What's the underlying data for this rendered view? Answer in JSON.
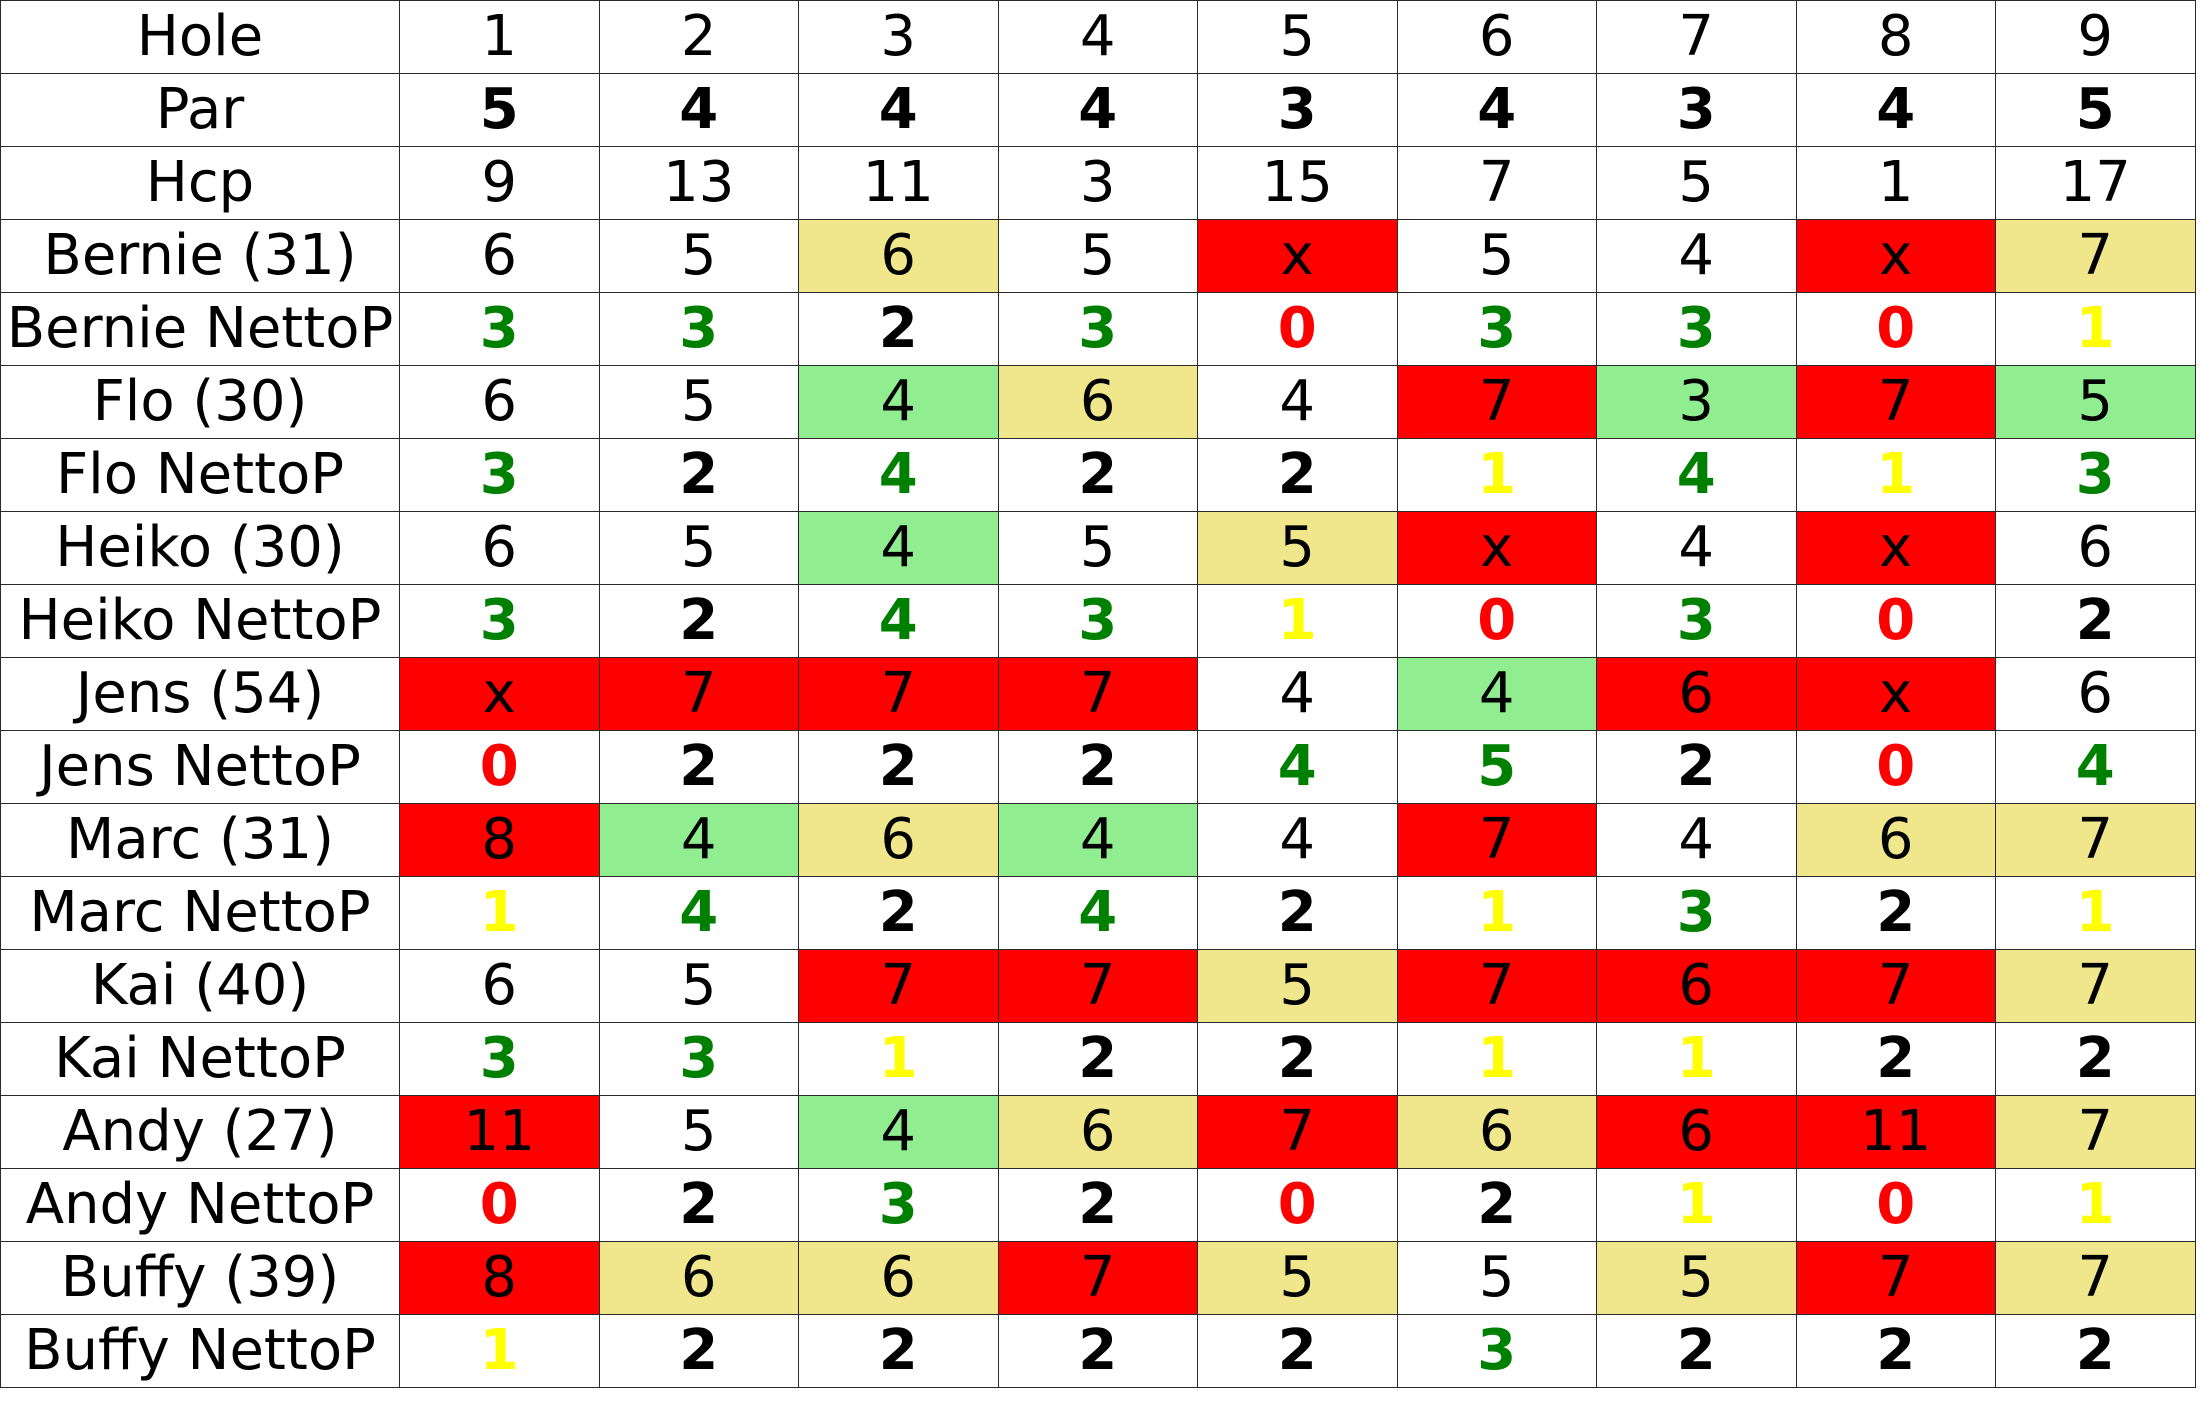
{
  "colors": {
    "cell_red": "#ff0000",
    "cell_green": "#90ee90",
    "cell_khaki": "#f0e68c",
    "text_green": "#008000",
    "text_red": "#ff0000",
    "text_yellow": "#ffff00",
    "text_black": "#000000"
  },
  "rows": [
    {
      "label": "Hole",
      "bold": false,
      "cells": [
        {
          "v": "1"
        },
        {
          "v": "2"
        },
        {
          "v": "3"
        },
        {
          "v": "4"
        },
        {
          "v": "5"
        },
        {
          "v": "6"
        },
        {
          "v": "7"
        },
        {
          "v": "8"
        },
        {
          "v": "9"
        }
      ]
    },
    {
      "label": "Par",
      "bold": true,
      "cells": [
        {
          "v": "5"
        },
        {
          "v": "4"
        },
        {
          "v": "4"
        },
        {
          "v": "4"
        },
        {
          "v": "3"
        },
        {
          "v": "4"
        },
        {
          "v": "3"
        },
        {
          "v": "4"
        },
        {
          "v": "5"
        }
      ]
    },
    {
      "label": "Hcp",
      "bold": false,
      "cells": [
        {
          "v": "9"
        },
        {
          "v": "13"
        },
        {
          "v": "11"
        },
        {
          "v": "3"
        },
        {
          "v": "15"
        },
        {
          "v": "7"
        },
        {
          "v": "5"
        },
        {
          "v": "1"
        },
        {
          "v": "17"
        }
      ]
    },
    {
      "label": "Bernie (31)",
      "bold": false,
      "cells": [
        {
          "v": "6"
        },
        {
          "v": "5"
        },
        {
          "v": "6",
          "bg": "khaki"
        },
        {
          "v": "5"
        },
        {
          "v": "x",
          "bg": "red"
        },
        {
          "v": "5"
        },
        {
          "v": "4"
        },
        {
          "v": "x",
          "bg": "red"
        },
        {
          "v": "7",
          "bg": "khaki"
        }
      ]
    },
    {
      "label": "Bernie NettoP",
      "bold": true,
      "cells": [
        {
          "v": "3",
          "fg": "green"
        },
        {
          "v": "3",
          "fg": "green"
        },
        {
          "v": "2"
        },
        {
          "v": "3",
          "fg": "green"
        },
        {
          "v": "0",
          "fg": "red"
        },
        {
          "v": "3",
          "fg": "green"
        },
        {
          "v": "3",
          "fg": "green"
        },
        {
          "v": "0",
          "fg": "red"
        },
        {
          "v": "1",
          "fg": "yellow"
        }
      ]
    },
    {
      "label": "Flo (30)",
      "bold": false,
      "cells": [
        {
          "v": "6"
        },
        {
          "v": "5"
        },
        {
          "v": "4",
          "bg": "green"
        },
        {
          "v": "6",
          "bg": "khaki"
        },
        {
          "v": "4"
        },
        {
          "v": "7",
          "bg": "red"
        },
        {
          "v": "3",
          "bg": "green"
        },
        {
          "v": "7",
          "bg": "red"
        },
        {
          "v": "5",
          "bg": "green"
        }
      ]
    },
    {
      "label": "Flo NettoP",
      "bold": true,
      "cells": [
        {
          "v": "3",
          "fg": "green"
        },
        {
          "v": "2"
        },
        {
          "v": "4",
          "fg": "green"
        },
        {
          "v": "2"
        },
        {
          "v": "2"
        },
        {
          "v": "1",
          "fg": "yellow"
        },
        {
          "v": "4",
          "fg": "green"
        },
        {
          "v": "1",
          "fg": "yellow"
        },
        {
          "v": "3",
          "fg": "green"
        }
      ]
    },
    {
      "label": "Heiko (30)",
      "bold": false,
      "cells": [
        {
          "v": "6"
        },
        {
          "v": "5"
        },
        {
          "v": "4",
          "bg": "green"
        },
        {
          "v": "5"
        },
        {
          "v": "5",
          "bg": "khaki"
        },
        {
          "v": "x",
          "bg": "red"
        },
        {
          "v": "4"
        },
        {
          "v": "x",
          "bg": "red"
        },
        {
          "v": "6"
        }
      ]
    },
    {
      "label": "Heiko NettoP",
      "bold": true,
      "cells": [
        {
          "v": "3",
          "fg": "green"
        },
        {
          "v": "2"
        },
        {
          "v": "4",
          "fg": "green"
        },
        {
          "v": "3",
          "fg": "green"
        },
        {
          "v": "1",
          "fg": "yellow"
        },
        {
          "v": "0",
          "fg": "red"
        },
        {
          "v": "3",
          "fg": "green"
        },
        {
          "v": "0",
          "fg": "red"
        },
        {
          "v": "2"
        }
      ]
    },
    {
      "label": "Jens (54)",
      "bold": false,
      "cells": [
        {
          "v": "x",
          "bg": "red"
        },
        {
          "v": "7",
          "bg": "red"
        },
        {
          "v": "7",
          "bg": "red"
        },
        {
          "v": "7",
          "bg": "red"
        },
        {
          "v": "4"
        },
        {
          "v": "4",
          "bg": "green"
        },
        {
          "v": "6",
          "bg": "red"
        },
        {
          "v": "x",
          "bg": "red"
        },
        {
          "v": "6"
        }
      ]
    },
    {
      "label": "Jens NettoP",
      "bold": true,
      "cells": [
        {
          "v": "0",
          "fg": "red"
        },
        {
          "v": "2"
        },
        {
          "v": "2"
        },
        {
          "v": "2"
        },
        {
          "v": "4",
          "fg": "green"
        },
        {
          "v": "5",
          "fg": "green"
        },
        {
          "v": "2"
        },
        {
          "v": "0",
          "fg": "red"
        },
        {
          "v": "4",
          "fg": "green"
        }
      ]
    },
    {
      "label": "Marc (31)",
      "bold": false,
      "cells": [
        {
          "v": "8",
          "bg": "red"
        },
        {
          "v": "4",
          "bg": "green"
        },
        {
          "v": "6",
          "bg": "khaki"
        },
        {
          "v": "4",
          "bg": "green"
        },
        {
          "v": "4"
        },
        {
          "v": "7",
          "bg": "red"
        },
        {
          "v": "4"
        },
        {
          "v": "6",
          "bg": "khaki"
        },
        {
          "v": "7",
          "bg": "khaki"
        }
      ]
    },
    {
      "label": "Marc NettoP",
      "bold": true,
      "cells": [
        {
          "v": "1",
          "fg": "yellow"
        },
        {
          "v": "4",
          "fg": "green"
        },
        {
          "v": "2"
        },
        {
          "v": "4",
          "fg": "green"
        },
        {
          "v": "2"
        },
        {
          "v": "1",
          "fg": "yellow"
        },
        {
          "v": "3",
          "fg": "green"
        },
        {
          "v": "2"
        },
        {
          "v": "1",
          "fg": "yellow"
        }
      ]
    },
    {
      "label": "Kai (40)",
      "bold": false,
      "cells": [
        {
          "v": "6"
        },
        {
          "v": "5"
        },
        {
          "v": "7",
          "bg": "red"
        },
        {
          "v": "7",
          "bg": "red"
        },
        {
          "v": "5",
          "bg": "khaki"
        },
        {
          "v": "7",
          "bg": "red"
        },
        {
          "v": "6",
          "bg": "red"
        },
        {
          "v": "7",
          "bg": "red"
        },
        {
          "v": "7",
          "bg": "khaki"
        }
      ]
    },
    {
      "label": "Kai NettoP",
      "bold": true,
      "cells": [
        {
          "v": "3",
          "fg": "green"
        },
        {
          "v": "3",
          "fg": "green"
        },
        {
          "v": "1",
          "fg": "yellow"
        },
        {
          "v": "2"
        },
        {
          "v": "2"
        },
        {
          "v": "1",
          "fg": "yellow"
        },
        {
          "v": "1",
          "fg": "yellow"
        },
        {
          "v": "2"
        },
        {
          "v": "2"
        }
      ]
    },
    {
      "label": "Andy (27)",
      "bold": false,
      "cells": [
        {
          "v": "11",
          "bg": "red"
        },
        {
          "v": "5"
        },
        {
          "v": "4",
          "bg": "green"
        },
        {
          "v": "6",
          "bg": "khaki"
        },
        {
          "v": "7",
          "bg": "red"
        },
        {
          "v": "6",
          "bg": "khaki"
        },
        {
          "v": "6",
          "bg": "red"
        },
        {
          "v": "11",
          "bg": "red"
        },
        {
          "v": "7",
          "bg": "khaki"
        }
      ]
    },
    {
      "label": "Andy NettoP",
      "bold": true,
      "cells": [
        {
          "v": "0",
          "fg": "red"
        },
        {
          "v": "2"
        },
        {
          "v": "3",
          "fg": "green"
        },
        {
          "v": "2"
        },
        {
          "v": "0",
          "fg": "red"
        },
        {
          "v": "2"
        },
        {
          "v": "1",
          "fg": "yellow"
        },
        {
          "v": "0",
          "fg": "red"
        },
        {
          "v": "1",
          "fg": "yellow"
        }
      ]
    },
    {
      "label": "Buffy (39)",
      "bold": false,
      "cells": [
        {
          "v": "8",
          "bg": "red"
        },
        {
          "v": "6",
          "bg": "khaki"
        },
        {
          "v": "6",
          "bg": "khaki"
        },
        {
          "v": "7",
          "bg": "red"
        },
        {
          "v": "5",
          "bg": "khaki"
        },
        {
          "v": "5"
        },
        {
          "v": "5",
          "bg": "khaki"
        },
        {
          "v": "7",
          "bg": "red"
        },
        {
          "v": "7",
          "bg": "khaki"
        }
      ]
    },
    {
      "label": "Buffy NettoP",
      "bold": true,
      "cells": [
        {
          "v": "1",
          "fg": "yellow"
        },
        {
          "v": "2"
        },
        {
          "v": "2"
        },
        {
          "v": "2"
        },
        {
          "v": "2"
        },
        {
          "v": "3",
          "fg": "green"
        },
        {
          "v": "2"
        },
        {
          "v": "2"
        },
        {
          "v": "2"
        }
      ]
    }
  ]
}
